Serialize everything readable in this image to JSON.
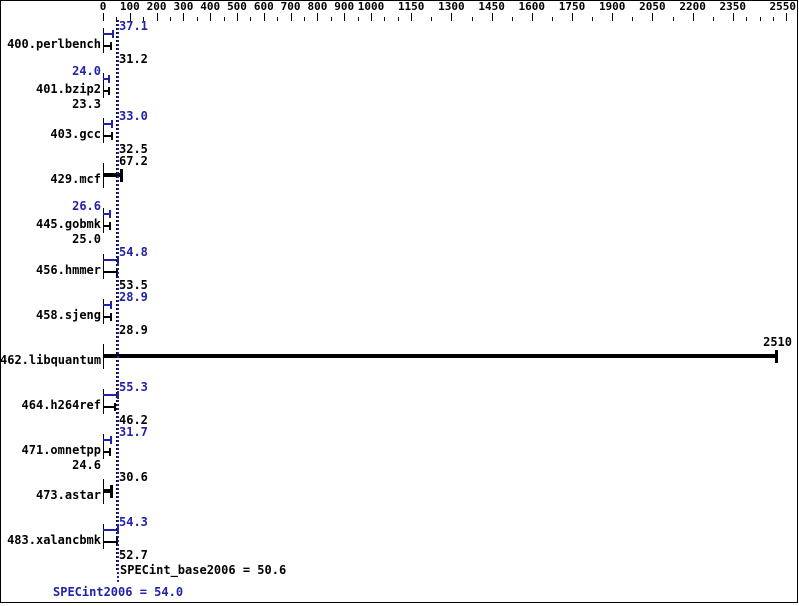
{
  "chart_data": {
    "type": "bar",
    "orientation": "horizontal",
    "title": "",
    "xlabel": "",
    "ylabel": "",
    "xlim": [
      0,
      2550
    ],
    "x_axis_position": "top",
    "grid": false,
    "legend": "none",
    "x_tick_labels": [
      "0",
      "100",
      "200",
      "300",
      "400",
      "500",
      "600",
      "700",
      "800",
      "900",
      "1000",
      "1150",
      "1300",
      "1450",
      "1600",
      "1750",
      "1900",
      "2050",
      "2200",
      "2350",
      "2550"
    ],
    "x_tick_values": [
      0,
      100,
      200,
      300,
      400,
      500,
      600,
      700,
      800,
      900,
      1000,
      1150,
      1300,
      1450,
      1600,
      1750,
      1900,
      2050,
      2200,
      2350,
      2550
    ],
    "benchmarks": [
      {
        "name": "400.perlbench",
        "merged": false,
        "peak": 37.1,
        "base": 31.2,
        "peak_label": "37.1",
        "base_label": "31.2",
        "peak_label_side": "right",
        "base_label_side": "right"
      },
      {
        "name": "401.bzip2",
        "merged": false,
        "peak": 24.0,
        "base": 23.3,
        "peak_label": "24.0",
        "base_label": "23.3",
        "peak_label_side": "left",
        "base_label_side": "left"
      },
      {
        "name": "403.gcc",
        "merged": false,
        "peak": 33.0,
        "base": 32.5,
        "peak_label": "33.0",
        "base_label": "32.5",
        "peak_label_side": "right",
        "base_label_side": "right"
      },
      {
        "name": "429.mcf",
        "merged": true,
        "peak": 67.2,
        "base": 67.2,
        "label": "67.2",
        "label_side": "right"
      },
      {
        "name": "445.gobmk",
        "merged": false,
        "peak": 26.6,
        "base": 25.0,
        "peak_label": "26.6",
        "base_label": "25.0",
        "peak_label_side": "left",
        "base_label_side": "left"
      },
      {
        "name": "456.hmmer",
        "merged": false,
        "peak": 54.8,
        "base": 53.5,
        "peak_label": "54.8",
        "base_label": "53.5",
        "peak_label_side": "right",
        "base_label_side": "right"
      },
      {
        "name": "458.sjeng",
        "merged": false,
        "peak": 28.9,
        "base": 28.9,
        "peak_label": "28.9",
        "base_label": "28.9",
        "peak_label_side": "right",
        "base_label_side": "right"
      },
      {
        "name": "462.libquantum",
        "merged": true,
        "peak": 2510,
        "base": 2510,
        "label": "2510",
        "label_side": "bar-end"
      },
      {
        "name": "464.h264ref",
        "merged": false,
        "peak": 55.3,
        "base": 46.2,
        "peak_label": "55.3",
        "base_label": "46.2",
        "peak_label_side": "right",
        "base_label_side": "right"
      },
      {
        "name": "471.omnetpp",
        "merged": false,
        "peak": 31.7,
        "base": 24.6,
        "peak_label": "31.7",
        "base_label": "24.6",
        "peak_label_side": "right",
        "base_label_side": "left"
      },
      {
        "name": "473.astar",
        "merged": true,
        "peak": 30.6,
        "base": 30.6,
        "label": "30.6",
        "label_side": "right"
      },
      {
        "name": "483.xalancbmk",
        "merged": false,
        "peak": 54.3,
        "base": 52.7,
        "peak_label": "54.3",
        "base_label": "52.7",
        "peak_label_side": "right",
        "base_label_side": "right"
      }
    ],
    "mean_lines": [
      {
        "metric": "SPECint_base2006",
        "value": 50.6
      },
      {
        "metric": "SPECint2006",
        "value": 54.0
      }
    ],
    "summary": {
      "base_text": "SPECint_base2006 = 50.6",
      "peak_text": "SPECint2006 = 54.0"
    },
    "colors": {
      "peak": "#2222a8",
      "base": "#000000",
      "background": "#ffffff",
      "border": "#000000"
    }
  }
}
